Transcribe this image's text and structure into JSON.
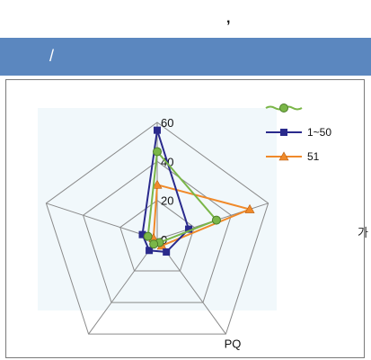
{
  "header": {
    "top_mark": ",",
    "title": "/"
  },
  "side_label": "가",
  "chart_data": {
    "type": "radar",
    "categories": [
      "",
      "",
      "PQ",
      "",
      ""
    ],
    "r_ticks": [
      "0",
      "20",
      "40",
      "60"
    ],
    "rlim": [
      0,
      60
    ],
    "grid": true,
    "legend": "top-right",
    "series": [
      {
        "name": "",
        "color": "#7ab648",
        "marker": "circle",
        "line_style": "wavy",
        "values": [
          45,
          32,
          2,
          3,
          5
        ]
      },
      {
        "name": "1~50",
        "color": "#2a2a8c",
        "marker": "square",
        "values": [
          56,
          17,
          8,
          7,
          8
        ]
      },
      {
        "name": "51",
        "color": "#f08a2a",
        "marker": "triangle",
        "values": [
          28,
          50,
          4,
          2,
          2
        ]
      }
    ]
  }
}
